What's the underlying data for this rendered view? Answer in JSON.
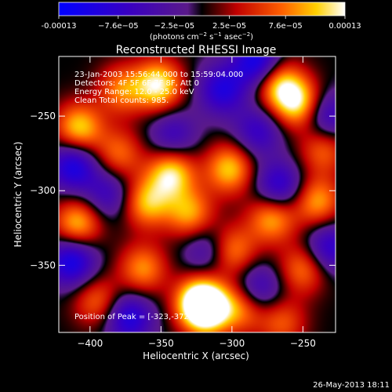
{
  "colorbar": {
    "tick_labels": [
      "-0.00013",
      "−7.6e−05",
      "−2.5e−05",
      "2.5e−05",
      "7.6e−05",
      "0.00013"
    ],
    "tick_values": [
      -0.00013,
      -7.6e-05,
      -2.5e-05,
      2.5e-05,
      7.6e-05,
      0.00013
    ],
    "range": [
      -0.00013,
      0.00013
    ],
    "unit_prefix": "(photons cm",
    "unit_exp1": "−2",
    "unit_mid": " s",
    "unit_exp2": "−1",
    "unit_mid2": " asec",
    "unit_exp3": "−2",
    "unit_suffix": ")"
  },
  "chart_data": {
    "type": "heatmap",
    "title": "Reconstructed RHESSI Image",
    "xlabel": "Heliocentric X (arcsec)",
    "ylabel": "Heliocentric Y (arcsec)",
    "xlim": [
      -422,
      -227
    ],
    "ylim": [
      -395,
      -210
    ],
    "x_ticks": [
      -400,
      -350,
      -300,
      -250
    ],
    "y_ticks": [
      -250,
      -300,
      -350
    ],
    "annotations": [
      "23-Jan-2003 15:56:44.000 to 15:59:04.000",
      "Detectors: 4F 5F 6F 7F 8F, Att 0",
      "Energy Range: 12.0 - 25.0 keV",
      "Clean    Total counts: 985.",
      "Position of Peak = [-323,-372]"
    ],
    "peak_position": [
      -323,
      -372
    ],
    "sources": [
      {
        "x": -323,
        "y": -374,
        "amp": 1.0
      },
      {
        "x": -318,
        "y": -380,
        "amp": 0.9
      },
      {
        "x": -352,
        "y": -229,
        "amp": 0.95
      },
      {
        "x": -268,
        "y": -228,
        "amp": 0.8
      },
      {
        "x": -254,
        "y": -241,
        "amp": 0.9
      },
      {
        "x": -302,
        "y": -285,
        "amp": 0.8
      },
      {
        "x": -343,
        "y": -288,
        "amp": 0.9
      },
      {
        "x": -408,
        "y": -258,
        "amp": 0.85
      },
      {
        "x": -409,
        "y": -322,
        "amp": 0.8
      },
      {
        "x": -360,
        "y": -308,
        "amp": 0.75
      },
      {
        "x": -330,
        "y": -315,
        "amp": 0.7
      },
      {
        "x": -300,
        "y": -340,
        "amp": 0.65
      },
      {
        "x": -272,
        "y": -318,
        "amp": 0.75
      },
      {
        "x": -240,
        "y": -307,
        "amp": 0.7
      },
      {
        "x": -250,
        "y": -352,
        "amp": 0.6
      },
      {
        "x": -363,
        "y": -352,
        "amp": 0.65
      },
      {
        "x": -395,
        "y": -374,
        "amp": 0.55
      },
      {
        "x": -378,
        "y": -232,
        "amp": 0.6
      },
      {
        "x": -236,
        "y": -272,
        "amp": 0.55
      },
      {
        "x": -293,
        "y": -378,
        "amp": 0.65
      },
      {
        "x": -380,
        "y": -275,
        "amp": 0.55
      },
      {
        "x": -265,
        "y": -388,
        "amp": 0.5
      },
      {
        "x": -307,
        "y": -232,
        "amp": -0.7
      },
      {
        "x": -282,
        "y": -214,
        "amp": -0.9
      },
      {
        "x": -412,
        "y": -283,
        "amp": -0.8
      },
      {
        "x": -413,
        "y": -347,
        "amp": -0.85
      },
      {
        "x": -373,
        "y": -385,
        "amp": -0.75
      },
      {
        "x": -267,
        "y": -297,
        "amp": -0.7
      },
      {
        "x": -233,
        "y": -250,
        "amp": -0.6
      },
      {
        "x": -232,
        "y": -338,
        "amp": -0.65
      },
      {
        "x": -282,
        "y": -366,
        "amp": -0.6
      },
      {
        "x": -342,
        "y": -263,
        "amp": -0.5
      },
      {
        "x": -282,
        "y": -260,
        "amp": -0.55
      },
      {
        "x": -388,
        "y": -302,
        "amp": -0.5
      },
      {
        "x": -318,
        "y": -340,
        "amp": -0.45
      }
    ]
  },
  "footer": {
    "timestamp": "26-May-2013 18:11"
  }
}
